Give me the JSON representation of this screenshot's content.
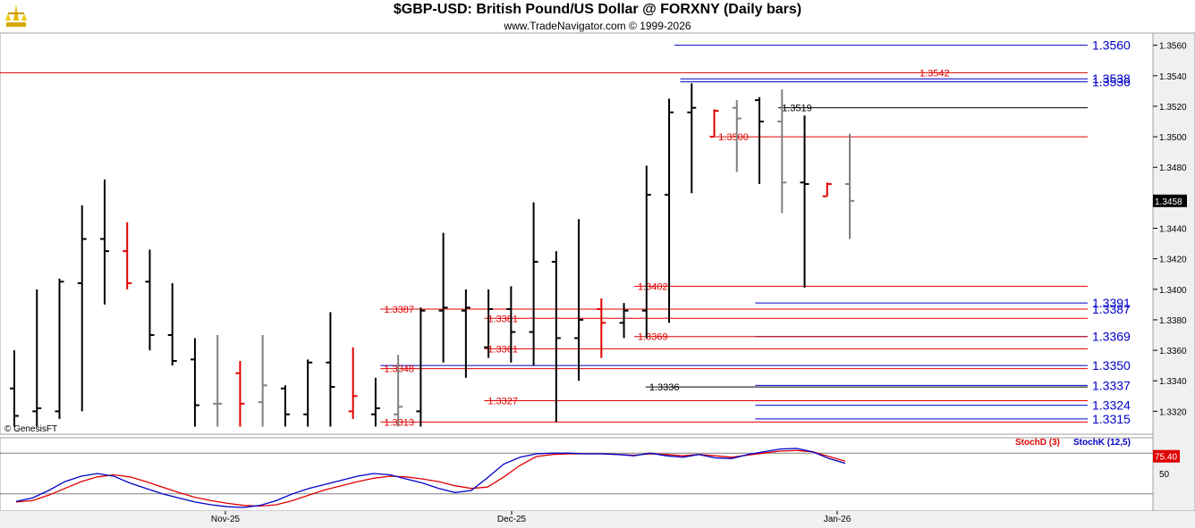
{
  "header": {
    "title": "$GBP-USD:  British Pound/US Dollar @ FORXNY  (Daily bars)",
    "subtitle": "www.TradeNavigator.com © 1999-2026"
  },
  "watermark": "© GenesisFT",
  "colors": {
    "up_bar": "#000000",
    "down_bar": "#e00000",
    "inside_bar": "#808080",
    "blue_level": "#0000c8",
    "red_level": "#e00000",
    "stoch_d": "#e00000",
    "stoch_k": "#0000c8"
  },
  "chart_data": [
    {
      "type": "bar",
      "subtype": "ohlc",
      "title": "$GBP-USD:  British Pound/US Dollar @ FORXNY  (Daily bars)",
      "ylim": [
        1.3305,
        1.3568
      ],
      "y_ticks": [
        "1.3320",
        "1.3340",
        "1.3360",
        "1.3380",
        "1.3400",
        "1.3420",
        "1.3440",
        "1.3460",
        "1.3480",
        "1.3500",
        "1.3520",
        "1.3540",
        "1.3560"
      ],
      "x_ticks": [
        "Nov-25",
        "Dec-25",
        "Jan-26"
      ],
      "last_price": "1.3458",
      "bars": [
        {
          "o": 1.3335,
          "h": 1.336,
          "l": 1.331,
          "c": 1.3317,
          "t": "up"
        },
        {
          "o": 1.332,
          "h": 1.34,
          "l": 1.331,
          "c": 1.3322,
          "t": "up"
        },
        {
          "o": 1.332,
          "h": 1.3407,
          "l": 1.3315,
          "c": 1.3405,
          "t": "up"
        },
        {
          "o": 1.3404,
          "h": 1.3455,
          "l": 1.332,
          "c": 1.3433,
          "t": "up"
        },
        {
          "o": 1.3433,
          "h": 1.3472,
          "l": 1.339,
          "c": 1.3425,
          "t": "up"
        },
        {
          "o": 1.3425,
          "h": 1.3444,
          "l": 1.34,
          "c": 1.3404,
          "t": "down"
        },
        {
          "o": 1.3405,
          "h": 1.3426,
          "l": 1.336,
          "c": 1.337,
          "t": "up"
        },
        {
          "o": 1.337,
          "h": 1.3404,
          "l": 1.335,
          "c": 1.3353,
          "t": "up"
        },
        {
          "o": 1.3354,
          "h": 1.3368,
          "l": 1.331,
          "c": 1.3324,
          "t": "up"
        },
        {
          "o": 1.3325,
          "h": 1.337,
          "l": 1.331,
          "c": 1.3325,
          "t": "inside"
        },
        {
          "o": 1.3345,
          "h": 1.3353,
          "l": 1.331,
          "c": 1.3325,
          "t": "down"
        },
        {
          "o": 1.3326,
          "h": 1.337,
          "l": 1.331,
          "c": 1.3337,
          "t": "inside"
        },
        {
          "o": 1.3335,
          "h": 1.3337,
          "l": 1.331,
          "c": 1.3318,
          "t": "up"
        },
        {
          "o": 1.3318,
          "h": 1.3354,
          "l": 1.331,
          "c": 1.3352,
          "t": "up"
        },
        {
          "o": 1.3352,
          "h": 1.3385,
          "l": 1.331,
          "c": 1.3336,
          "t": "up"
        },
        {
          "o": 1.332,
          "h": 1.3362,
          "l": 1.3315,
          "c": 1.333,
          "t": "down"
        },
        {
          "o": 1.3318,
          "h": 1.3342,
          "l": 1.331,
          "c": 1.3322,
          "t": "up"
        },
        {
          "o": 1.3318,
          "h": 1.3357,
          "l": 1.331,
          "c": 1.3323,
          "t": "inside"
        },
        {
          "o": 1.332,
          "h": 1.3388,
          "l": 1.331,
          "c": 1.3386,
          "t": "up"
        },
        {
          "o": 1.3386,
          "h": 1.3437,
          "l": 1.3352,
          "c": 1.3388,
          "t": "up"
        },
        {
          "o": 1.3386,
          "h": 1.34,
          "l": 1.3342,
          "c": 1.3388,
          "t": "up"
        },
        {
          "o": 1.3362,
          "h": 1.34,
          "l": 1.3355,
          "c": 1.3387,
          "t": "up"
        },
        {
          "o": 1.3387,
          "h": 1.3402,
          "l": 1.3352,
          "c": 1.3372,
          "t": "up"
        },
        {
          "o": 1.3372,
          "h": 1.3457,
          "l": 1.335,
          "c": 1.3418,
          "t": "up"
        },
        {
          "o": 1.3418,
          "h": 1.3425,
          "l": 1.3313,
          "c": 1.3368,
          "t": "up"
        },
        {
          "o": 1.3368,
          "h": 1.3446,
          "l": 1.334,
          "c": 1.338,
          "t": "up"
        },
        {
          "o": 1.3387,
          "h": 1.3394,
          "l": 1.3355,
          "c": 1.3378,
          "t": "down"
        },
        {
          "o": 1.3378,
          "h": 1.3391,
          "l": 1.3368,
          "c": 1.3386,
          "t": "up"
        },
        {
          "o": 1.3386,
          "h": 1.3481,
          "l": 1.3368,
          "c": 1.3462,
          "t": "up"
        },
        {
          "o": 1.3462,
          "h": 1.3525,
          "l": 1.3378,
          "c": 1.3516,
          "t": "up"
        },
        {
          "o": 1.3516,
          "h": 1.3535,
          "l": 1.3463,
          "c": 1.3519,
          "t": "up"
        },
        {
          "o": 1.35,
          "h": 1.3518,
          "l": 1.35,
          "c": 1.3517,
          "t": "down"
        },
        {
          "o": 1.3519,
          "h": 1.3524,
          "l": 1.3477,
          "c": 1.3512,
          "t": "inside"
        },
        {
          "o": 1.3524,
          "h": 1.3526,
          "l": 1.3469,
          "c": 1.351,
          "t": "up"
        },
        {
          "o": 1.351,
          "h": 1.3531,
          "l": 1.345,
          "c": 1.347,
          "t": "inside"
        },
        {
          "o": 1.347,
          "h": 1.3514,
          "l": 1.3401,
          "c": 1.3469,
          "t": "up"
        },
        {
          "o": 1.3461,
          "h": 1.347,
          "l": 1.3461,
          "c": 1.3469,
          "t": "down"
        },
        {
          "o": 1.3469,
          "h": 1.3502,
          "l": 1.3433,
          "c": 1.3458,
          "t": "inside"
        }
      ],
      "levels": [
        {
          "value": 1.356,
          "label": "1.3560",
          "color": "blue",
          "x0": 0.585
        },
        {
          "value": 1.3542,
          "label": "1.3542",
          "color": "red",
          "x0": 0.0
        },
        {
          "value": 1.3538,
          "label": "1.3538",
          "color": "blue",
          "x0": 0.59
        },
        {
          "value": 1.3536,
          "label": "1.3536",
          "color": "blue",
          "x0": 0.59
        },
        {
          "value": 1.3519,
          "label": "1.3519",
          "color": "black",
          "x0": 0.675
        },
        {
          "value": 1.35,
          "label": "1.3500",
          "color": "red",
          "x0": 0.62
        },
        {
          "value": 1.3402,
          "label": "1.3402",
          "color": "red",
          "x0": 0.55
        },
        {
          "value": 1.3391,
          "label": "1.3391",
          "color": "blue",
          "x0": 0.655
        },
        {
          "value": 1.3387,
          "label": "1.3387",
          "color": "blue",
          "x0": 0.33
        },
        {
          "value": 1.3387,
          "label": "1.3387",
          "color": "red",
          "x0": 0.33
        },
        {
          "value": 1.3381,
          "label": "1.3381",
          "color": "red",
          "x0": 0.42
        },
        {
          "value": 1.3369,
          "label": "1.3369",
          "color": "blue",
          "x0": 0.655
        },
        {
          "value": 1.3369,
          "label": "1.3369",
          "color": "red",
          "x0": 0.55
        },
        {
          "value": 1.3361,
          "label": "1.3361",
          "color": "red",
          "x0": 0.42
        },
        {
          "value": 1.335,
          "label": "1.3350",
          "color": "blue",
          "x0": 0.33
        },
        {
          "value": 1.3348,
          "label": "1.3348",
          "color": "red",
          "x0": 0.33
        },
        {
          "value": 1.3337,
          "label": "1.3337",
          "color": "blue",
          "x0": 0.655
        },
        {
          "value": 1.3336,
          "label": "1.3336",
          "color": "black",
          "x0": 0.56
        },
        {
          "value": 1.3327,
          "label": "1.3327",
          "color": "red",
          "x0": 0.42
        },
        {
          "value": 1.3324,
          "label": "1.3324",
          "color": "blue",
          "x0": 0.655
        },
        {
          "value": 1.3315,
          "label": "1.3315",
          "color": "blue",
          "x0": 0.655
        },
        {
          "value": 1.3313,
          "label": "1.3313",
          "color": "red",
          "x0": 0.33
        }
      ]
    },
    {
      "type": "line",
      "title": "",
      "ylim": [
        0,
        100
      ],
      "y_ticks": [
        "50"
      ],
      "last_value_label": "75.40",
      "legend": [
        "StochD (3)",
        "StochK (12,5)"
      ],
      "series": [
        {
          "name": "StochD (3)",
          "values": [
            8,
            10,
            18,
            28,
            38,
            45,
            48,
            45,
            38,
            30,
            22,
            15,
            10,
            6,
            3,
            2,
            4,
            10,
            18,
            26,
            32,
            38,
            43,
            46,
            45,
            42,
            38,
            32,
            28,
            30,
            45,
            62,
            75,
            78,
            79,
            79,
            79,
            78,
            77,
            79,
            78,
            76,
            78,
            76,
            74,
            77,
            80,
            83,
            84,
            82,
            75,
            68
          ]
        },
        {
          "name": "StochK (12,5)",
          "values": [
            9,
            14,
            25,
            38,
            46,
            50,
            46,
            36,
            28,
            20,
            14,
            8,
            4,
            1,
            0,
            3,
            10,
            20,
            28,
            34,
            40,
            46,
            50,
            48,
            42,
            36,
            28,
            22,
            25,
            44,
            64,
            74,
            79,
            80,
            80,
            79,
            79,
            78,
            76,
            80,
            76,
            74,
            78,
            73,
            72,
            78,
            82,
            86,
            87,
            82,
            72,
            65
          ]
        }
      ]
    }
  ]
}
